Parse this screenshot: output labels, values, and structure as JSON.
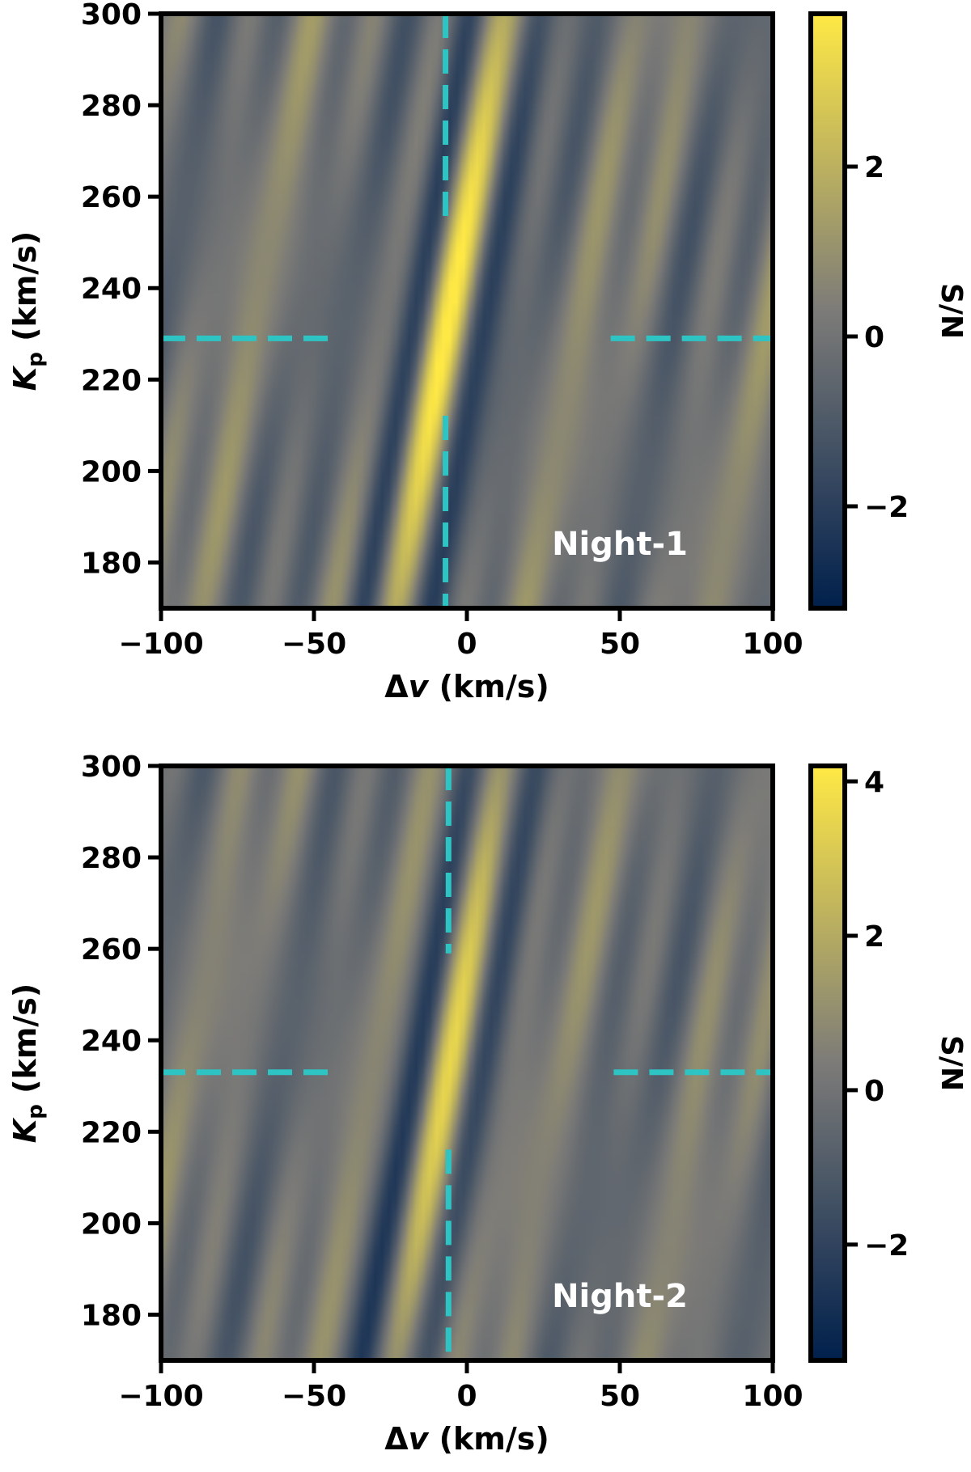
{
  "chart_data": [
    {
      "type": "heatmap",
      "panel_label": "Night-1",
      "xlabel_prefix": "Δ",
      "xlabel_var": "v",
      "xlabel_unit": " (km/s)",
      "ylabel_var": "K",
      "ylabel_sub": "p",
      "ylabel_unit": " (km/s)",
      "colorbar_label": "S/N",
      "xlim": [
        -100,
        100
      ],
      "ylim": [
        170,
        300
      ],
      "x_ticks": [
        -100,
        -50,
        0,
        50,
        100
      ],
      "x_tick_labels": [
        "−100",
        "−50",
        "0",
        "50",
        "100"
      ],
      "y_ticks": [
        180,
        200,
        220,
        240,
        260,
        280,
        300
      ],
      "y_tick_labels": [
        "180",
        "200",
        "220",
        "240",
        "260",
        "280",
        "300"
      ],
      "cbar_range": [
        -3.2,
        3.8
      ],
      "cbar_ticks": [
        -2,
        0,
        2
      ],
      "cbar_tick_labels": [
        "−2",
        "0",
        "2"
      ],
      "peak": {
        "dv": -7,
        "kp": 229
      },
      "peak_snr": 3.8,
      "colormap": [
        "#00204c",
        "#7c7b78",
        "#ffe945"
      ],
      "marker_color": "#2ec4c4"
    },
    {
      "type": "heatmap",
      "panel_label": "Night-2",
      "xlabel_prefix": "Δ",
      "xlabel_var": "v",
      "xlabel_unit": " (km/s)",
      "ylabel_var": "K",
      "ylabel_sub": "p",
      "ylabel_unit": " (km/s)",
      "colorbar_label": "S/N",
      "xlim": [
        -100,
        100
      ],
      "ylim": [
        170,
        300
      ],
      "x_ticks": [
        -100,
        -50,
        0,
        50,
        100
      ],
      "x_tick_labels": [
        "−100",
        "−50",
        "0",
        "50",
        "100"
      ],
      "y_ticks": [
        180,
        200,
        220,
        240,
        260,
        280,
        300
      ],
      "y_tick_labels": [
        "180",
        "200",
        "220",
        "240",
        "260",
        "280",
        "300"
      ],
      "cbar_range": [
        -3.5,
        4.2
      ],
      "cbar_ticks": [
        -2,
        0,
        2,
        4
      ],
      "cbar_tick_labels": [
        "−2",
        "0",
        "2",
        "4"
      ],
      "peak": {
        "dv": -6,
        "kp": 233
      },
      "peak_snr": 4.2,
      "colormap": [
        "#00204c",
        "#7c7b78",
        "#ffe945"
      ],
      "marker_color": "#2ec4c4"
    }
  ]
}
